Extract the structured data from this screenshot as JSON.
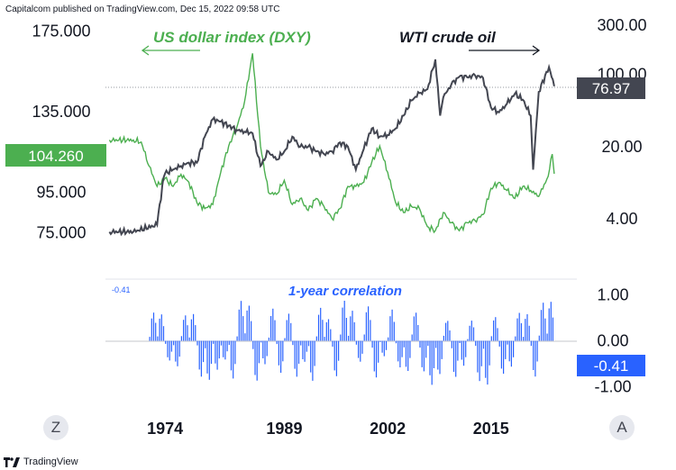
{
  "header": {
    "text": "Capitalcom published on TradingView.com, Dec 15, 2022 09:58 UTC"
  },
  "footer": {
    "brand": "TradingView"
  },
  "buttons": {
    "left": "Z",
    "right": "A"
  },
  "colors": {
    "dxy": "#4caf50",
    "oil": "#434651",
    "corr": "#2962ff",
    "oil_tag": "#434651"
  },
  "chart_data": [
    {
      "type": "line",
      "annotations": {
        "dxy_label": "US dollar index (DXY)",
        "oil_label": "WTI crude oil"
      },
      "x_ticks": [
        "1974",
        "1989",
        "2002",
        "2015"
      ],
      "left_axis": {
        "ticks": [
          "175.000",
          "135.000",
          "95.000",
          "75.000"
        ],
        "range": [
          60,
          178
        ]
      },
      "right_axis": {
        "ticks": [
          "300.00",
          "100.00",
          "20.00",
          "4.00"
        ],
        "scale": "log",
        "range": [
          1.5,
          300
        ]
      },
      "last_values": {
        "dxy": "104.260",
        "oil": "76.97"
      },
      "series": [
        {
          "name": "US dollar index (DXY)",
          "axis": "left",
          "x": [
            1967,
            1970,
            1971,
            1972,
            1973,
            1974,
            1975,
            1976,
            1977,
            1978,
            1979,
            1980,
            1981,
            1982,
            1983,
            1984,
            1985,
            1986,
            1987,
            1988,
            1989,
            1990,
            1991,
            1992,
            1993,
            1994,
            1995,
            1996,
            1997,
            1998,
            1999,
            2000,
            2001,
            2002,
            2003,
            2004,
            2005,
            2006,
            2007,
            2008,
            2009,
            2010,
            2011,
            2012,
            2013,
            2014,
            2015,
            2016,
            2017,
            2018,
            2019,
            2020,
            2021,
            2022.2,
            2022.7,
            2022.95
          ],
          "y": [
            121,
            121,
            120,
            108,
            98,
            102,
            98,
            104,
            100,
            90,
            87,
            89,
            105,
            118,
            127,
            140,
            164,
            118,
            95,
            94,
            101,
            89,
            92,
            86,
            92,
            88,
            82,
            87,
            98,
            98,
            100,
            110,
            118,
            105,
            90,
            85,
            88,
            87,
            78,
            76,
            85,
            80,
            76,
            80,
            81,
            84,
            97,
            100,
            96,
            92,
            98,
            96,
            93,
            103,
            114,
            104.26
          ]
        },
        {
          "name": "WTI crude oil",
          "axis": "right",
          "x": [
            1967,
            1970,
            1973,
            1973.8,
            1974,
            1975,
            1976,
            1977,
            1978,
            1979,
            1980,
            1981,
            1982,
            1983,
            1984,
            1985,
            1986,
            1987,
            1988,
            1989,
            1990,
            1991,
            1992,
            1993,
            1994,
            1995,
            1996,
            1997,
            1998,
            1999,
            2000,
            2001,
            2002,
            2003,
            2004,
            2005,
            2006,
            2007,
            2008,
            2008.6,
            2009,
            2010,
            2011,
            2012,
            2013,
            2014,
            2015,
            2016,
            2017,
            2018,
            2019,
            2020,
            2020.3,
            2021,
            2022.3,
            2022.95
          ],
          "y": [
            3,
            3,
            3.5,
            10,
            11,
            12,
            13,
            14,
            14,
            25,
            37,
            35,
            32,
            29,
            28,
            27,
            13,
            18,
            15,
            18,
            25,
            20,
            20,
            18,
            17,
            18,
            22,
            20,
            12,
            19,
            30,
            25,
            26,
            30,
            40,
            56,
            66,
            72,
            140,
            40,
            60,
            80,
            95,
            94,
            98,
            93,
            48,
            43,
            52,
            65,
            57,
            40,
            12,
            68,
            118,
            76.97
          ]
        }
      ]
    },
    {
      "type": "bar",
      "title": "1-year correlation",
      "y_ticks": [
        "1.00",
        "0.00",
        "-1.00"
      ],
      "range": [
        -1.05,
        1.05
      ],
      "last_value": "-0.41",
      "corner_label": "-0.41",
      "x": [
        1972,
        1973,
        1974,
        1975,
        1976,
        1977,
        1978,
        1979,
        1980,
        1981,
        1982,
        1983,
        1984,
        1985,
        1986,
        1987,
        1988,
        1989,
        1990,
        1991,
        1992,
        1993,
        1994,
        1995,
        1996,
        1997,
        1998,
        1999,
        2000,
        2001,
        2002,
        2003,
        2004,
        2005,
        2006,
        2007,
        2008,
        2009,
        2010,
        2011,
        2012,
        2013,
        2014,
        2015,
        2016,
        2017,
        2018,
        2019,
        2020,
        2021,
        2022,
        2022.95
      ],
      "values": [
        0.65,
        0.55,
        -0.4,
        -0.6,
        0.6,
        0.55,
        -0.75,
        -0.9,
        -0.6,
        -0.45,
        -0.8,
        0.85,
        0.8,
        -0.9,
        -0.5,
        0.7,
        -0.7,
        0.6,
        -0.8,
        -0.45,
        -0.9,
        0.75,
        0.45,
        -0.75,
        0.85,
        0.7,
        -0.5,
        0.8,
        -0.85,
        -0.3,
        0.65,
        -0.55,
        -0.7,
        0.65,
        -0.7,
        -0.95,
        -0.75,
        0.45,
        -0.8,
        -0.55,
        0.45,
        -0.9,
        -0.95,
        0.5,
        -0.7,
        -0.6,
        0.65,
        0.55,
        -0.75,
        0.8,
        0.9,
        -0.41
      ]
    }
  ]
}
